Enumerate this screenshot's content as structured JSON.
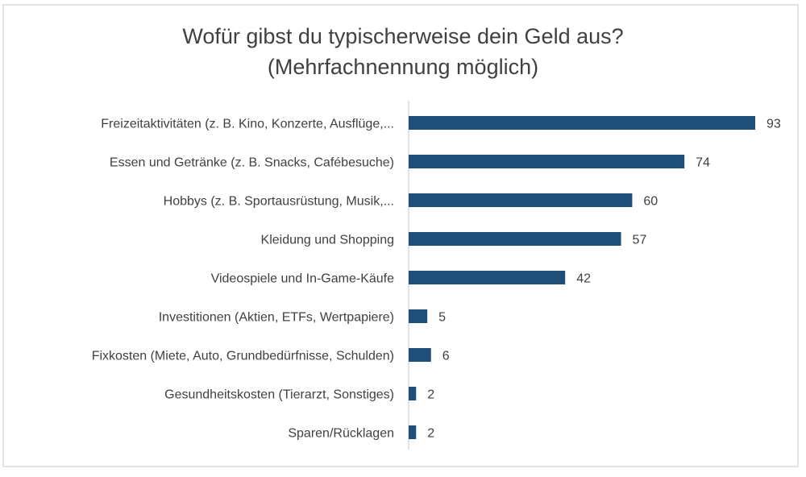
{
  "chart_data": {
    "type": "bar",
    "orientation": "horizontal",
    "title": "Wofür gibst du typischerweise dein Geld aus?",
    "subtitle": "(Mehrfachnennung möglich)",
    "categories": [
      "Freizeitaktivitäten (z. B. Kino, Konzerte, Ausflüge,...",
      "Essen und Getränke (z. B. Snacks, Cafébesuche)",
      "Hobbys (z. B. Sportausrüstung, Musik,...",
      "Kleidung und Shopping",
      "Videospiele und In-Game-Käufe",
      "Investitionen (Aktien, ETFs, Wertpapiere)",
      "Fixkosten (Miete, Auto, Grundbedürfnisse, Schulden)",
      "Gesundheitskosten (Tierarzt, Sonstiges)",
      "Sparen/Rücklagen"
    ],
    "values": [
      93,
      74,
      60,
      57,
      42,
      5,
      6,
      2,
      2
    ],
    "value_labels": [
      "93",
      "74",
      "60",
      "57",
      "42",
      "5",
      "6",
      "2",
      "2"
    ],
    "xlabel": "",
    "ylabel": "",
    "xlim": [
      0,
      93
    ],
    "grid": false,
    "legend": "none",
    "bar_color": "#1F4E79"
  }
}
